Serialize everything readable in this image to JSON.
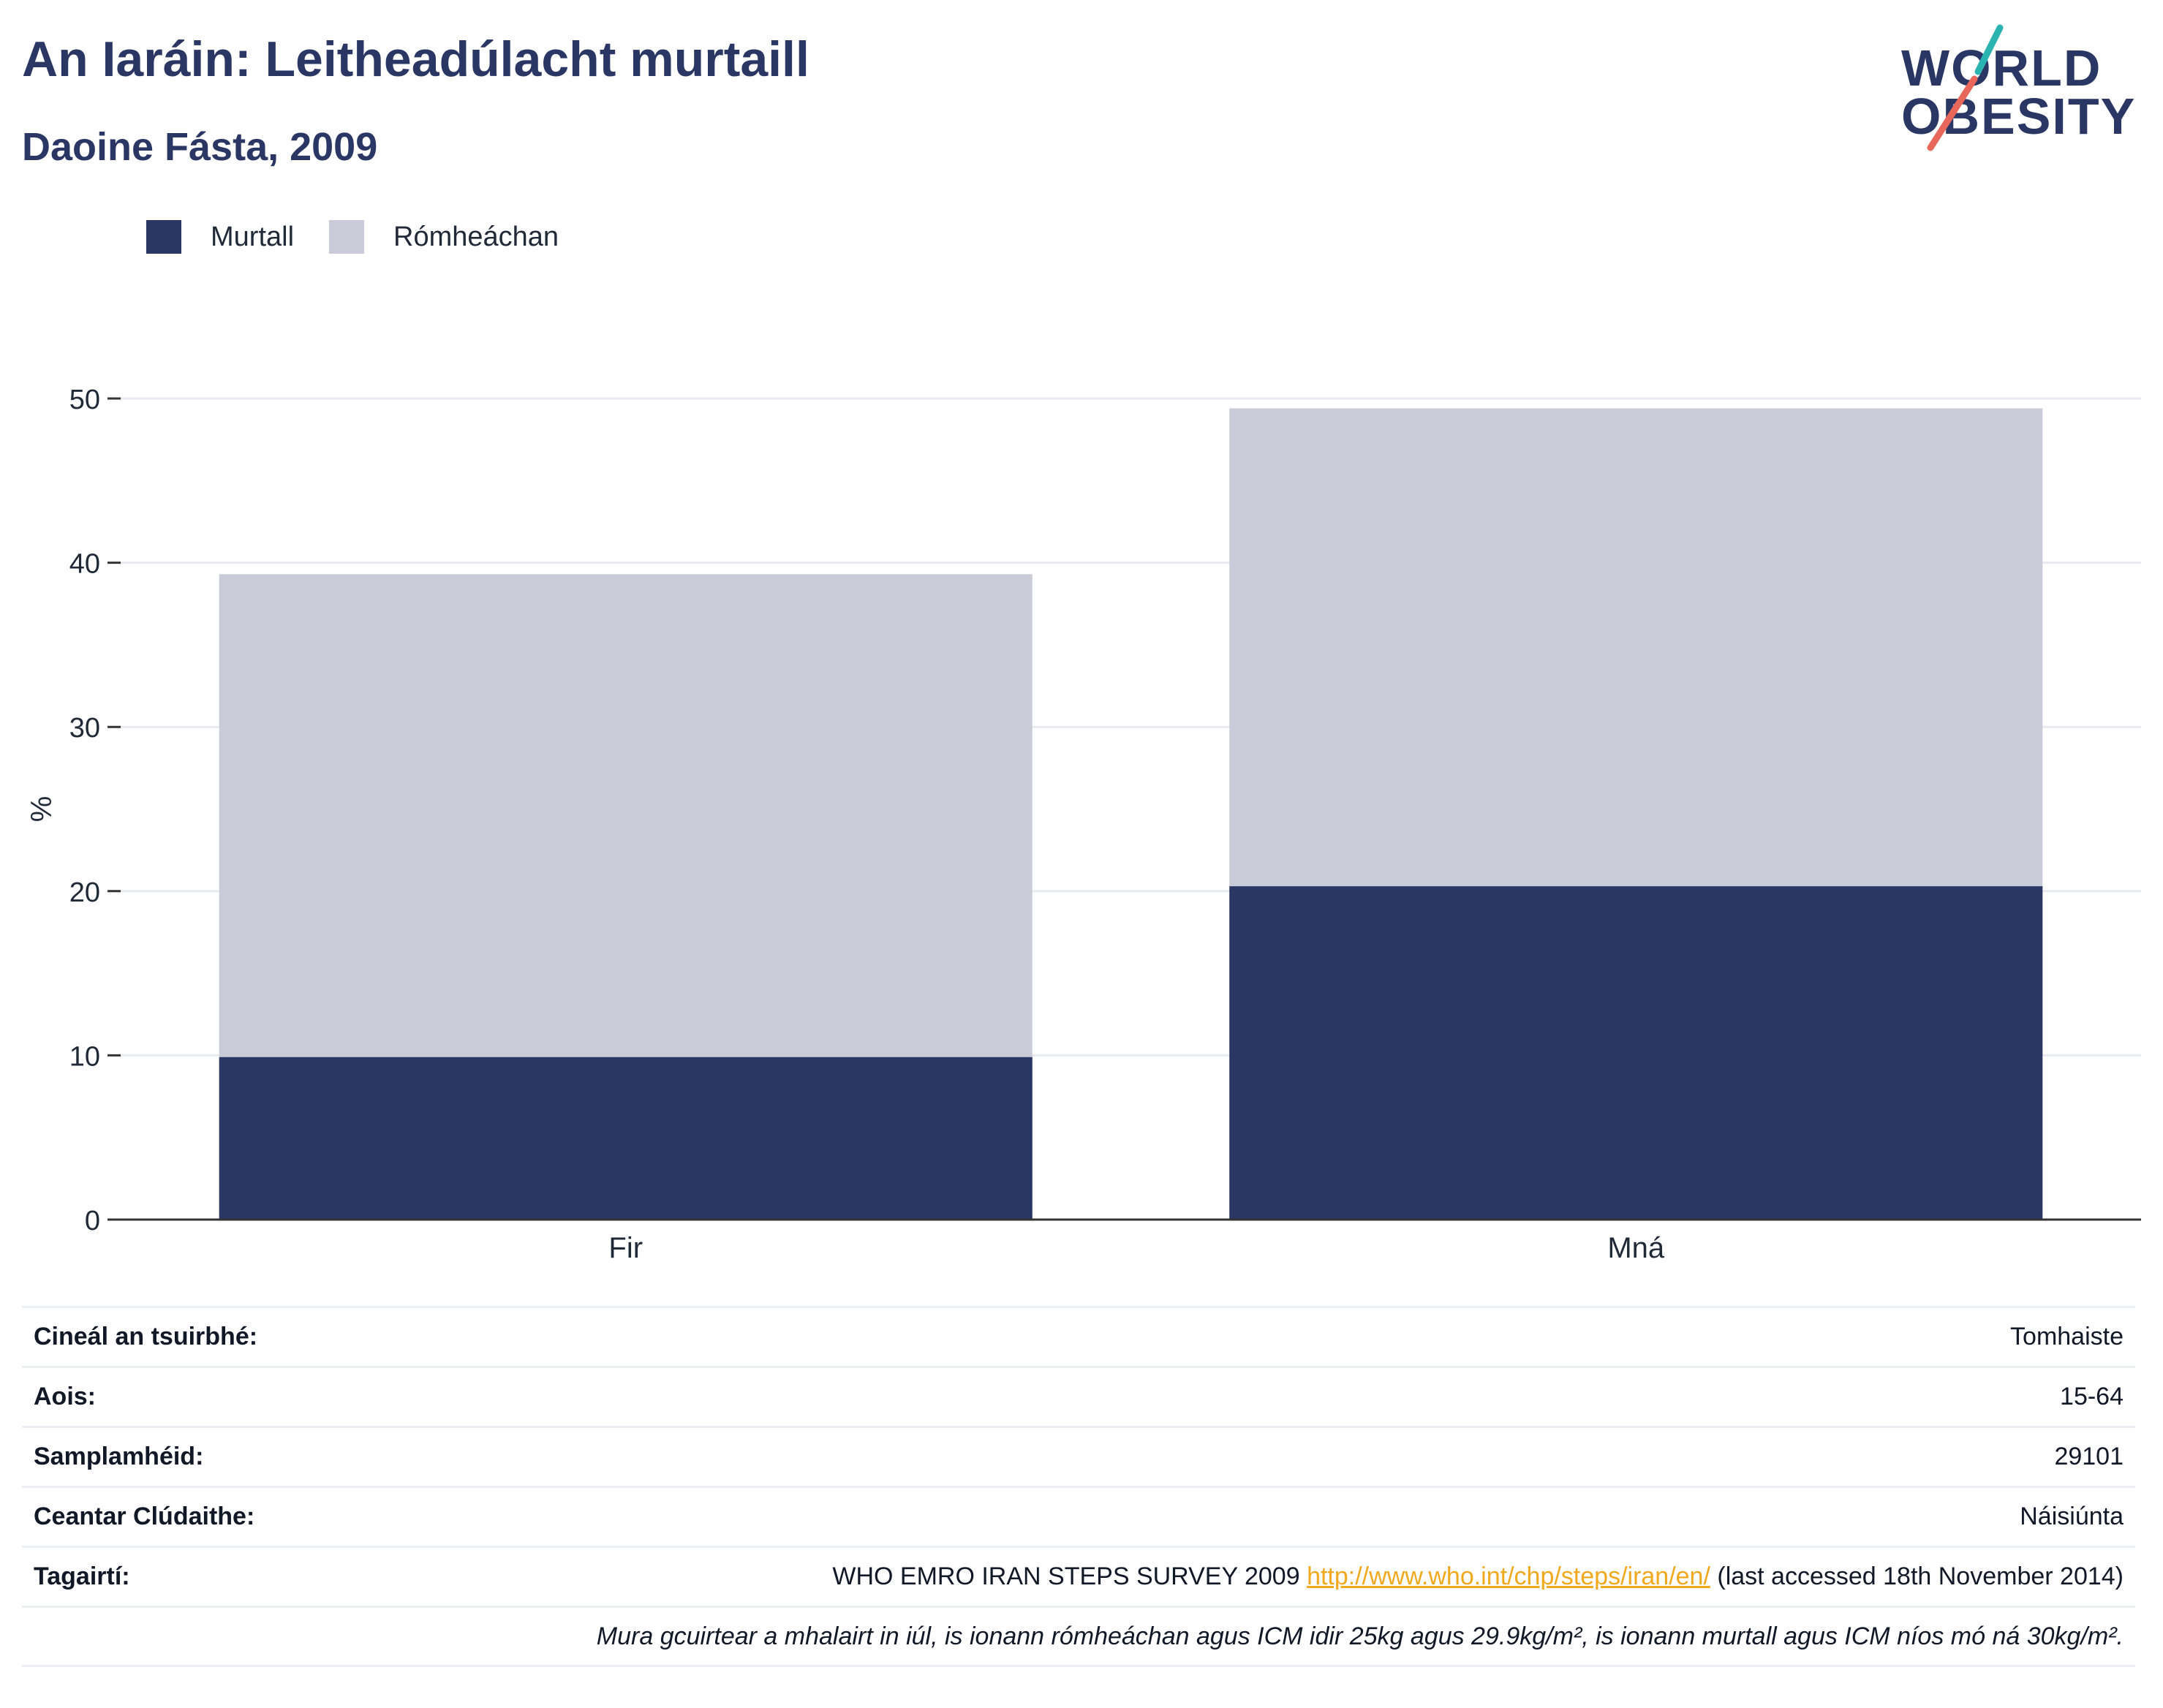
{
  "header": {
    "title": "An Iaráin: Leitheadúlacht murtaill",
    "subtitle": "Daoine Fásta, 2009"
  },
  "logo": {
    "line1": "WORLD",
    "line2": "OBESITY",
    "accent_teal": "#2bb3b1",
    "accent_coral": "#e8675a"
  },
  "colors": {
    "obese": "#2a3663",
    "overweight": "#c9ccd8",
    "link": "#f2a81d"
  },
  "chart_data": {
    "type": "bar",
    "stacked": true,
    "categories": [
      "Fir",
      "Mná"
    ],
    "series": [
      {
        "name": "Murtall",
        "values": [
          9.9,
          20.3
        ]
      },
      {
        "name": "Rómheáchan",
        "values": [
          29.4,
          29.1
        ]
      }
    ],
    "ylabel": "%",
    "xlabel": "",
    "ylim": [
      0,
      50
    ],
    "yticks": [
      0,
      10,
      20,
      30,
      40,
      50
    ],
    "grid": true,
    "legend_position": "top-left"
  },
  "info": {
    "rows": [
      {
        "label": "Cineál an tsuirbhé:",
        "value": "Tomhaiste"
      },
      {
        "label": "Aois:",
        "value": "15-64"
      },
      {
        "label": "Samplamhéid:",
        "value": "29101"
      },
      {
        "label": "Ceantar Clúdaithe:",
        "value": "Náisiúnta"
      }
    ],
    "references": {
      "label": "Tagairtí:",
      "prefix": "WHO EMRO IRAN STEPS SURVEY 2009",
      "link": "http://www.who.int/chp/steps/iran/en/",
      "suffix": "(last accessed 18th November 2014)"
    },
    "note": "Mura gcuirtear a mhalairt in iúl, is ionann rómheáchan agus ICM idir 25kg agus 29.9kg/m², is ionann murtall agus ICM níos mó ná 30kg/m²."
  }
}
